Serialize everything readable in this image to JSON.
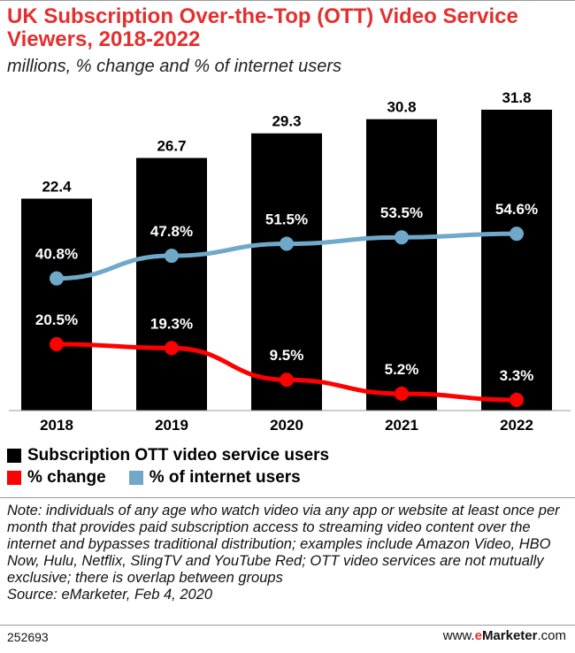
{
  "title": "UK Subscription Over-the-Top (OTT) Video Service Viewers, 2018-2022",
  "subtitle": "millions, % change and % of internet users",
  "colors": {
    "title": "#e3302f",
    "bars": "#000000",
    "change": "#ff0000",
    "internet": "#6fa8c8"
  },
  "chart_data": {
    "type": "bar",
    "categories": [
      "2018",
      "2019",
      "2020",
      "2021",
      "2022"
    ],
    "series": [
      {
        "name": "Subscription OTT video service users",
        "kind": "bar",
        "values": [
          22.4,
          26.7,
          29.3,
          30.8,
          31.8
        ],
        "labels": [
          "22.4",
          "26.7",
          "29.3",
          "30.8",
          "31.8"
        ]
      },
      {
        "name": "% of internet users",
        "kind": "line",
        "values": [
          40.8,
          47.8,
          51.5,
          53.5,
          54.6
        ],
        "labels": [
          "40.8%",
          "47.8%",
          "51.5%",
          "53.5%",
          "54.6%"
        ]
      },
      {
        "name": "% change",
        "kind": "line",
        "values": [
          20.5,
          19.3,
          9.5,
          5.2,
          3.3
        ],
        "labels": [
          "20.5%",
          "19.3%",
          "9.5%",
          "5.2%",
          "3.3%"
        ]
      }
    ],
    "ylim": [
      0,
      31.8
    ]
  },
  "legend": {
    "bars": "Subscription OTT video service users",
    "change": "% change",
    "internet": "% of internet users"
  },
  "note": "Note: individuals of any age who watch video via any app or website at least once per month that provides paid subscription access to streaming video content over the internet and bypasses traditional distribution; examples include Amazon Video, HBO Now, Hulu, Netflix, SlingTV and YouTube Red; OTT video services are not mutually exclusive; there is overlap between groups",
  "source": "Source: eMarketer, Feb 4, 2020",
  "footer": {
    "id": "252693",
    "prefix": "www.",
    "accent": "e",
    "brand": "Marketer",
    "suffix": ".com"
  }
}
